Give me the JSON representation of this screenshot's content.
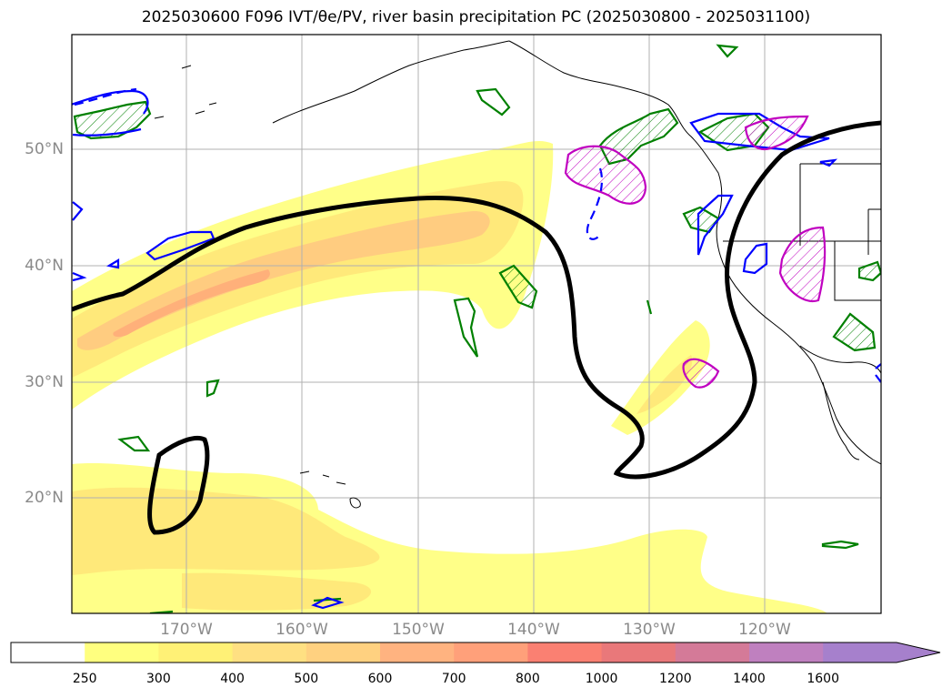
{
  "title": "2025030600 F096 IVT/θe/PV, river basin precipitation PC (2025030800 - 2025031100)",
  "lat_labels": [
    "50°N",
    "40°N",
    "30°N",
    "20°N"
  ],
  "lon_labels": [
    "170°W",
    "160°W",
    "150°W",
    "140°W",
    "130°W",
    "120°W"
  ],
  "colorbar": {
    "ticks": [
      "250",
      "300",
      "400",
      "500",
      "600",
      "700",
      "800",
      "1000",
      "1200",
      "1400",
      "1600"
    ],
    "colors": [
      "#ffffff",
      "#ffff7f",
      "#fff176",
      "#ffe082",
      "#ffd180",
      "#ffb380",
      "#ffa07a",
      "#fa8072",
      "#e9787a",
      "#d47a98",
      "#bf80bf",
      "#a680cc"
    ],
    "extend": "max"
  },
  "colors": {
    "ivt_low": "#ffff88",
    "ivt_mid": "#ffe97a",
    "ivt_high": "#ffcc80",
    "ivt_core": "#ffb07a",
    "theta_e_contour": "#000000",
    "green_contour": "#008000",
    "blue_contour": "#0000ff",
    "magenta_contour": "#c000c0",
    "grid": "#b0b0b0",
    "coast": "#000000"
  }
}
